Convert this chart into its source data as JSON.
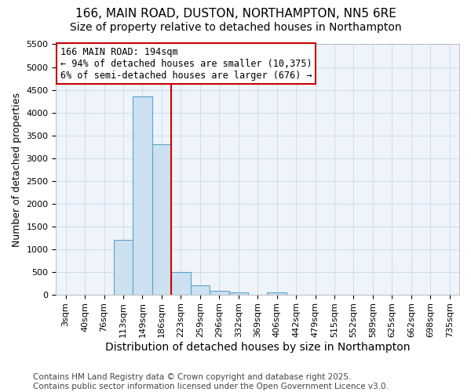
{
  "title": "166, MAIN ROAD, DUSTON, NORTHAMPTON, NN5 6RE",
  "subtitle": "Size of property relative to detached houses in Northampton",
  "xlabel": "Distribution of detached houses by size in Northampton",
  "ylabel": "Number of detached properties",
  "bins": [
    "3sqm",
    "40sqm",
    "76sqm",
    "113sqm",
    "149sqm",
    "186sqm",
    "223sqm",
    "259sqm",
    "296sqm",
    "332sqm",
    "369sqm",
    "406sqm",
    "442sqm",
    "479sqm",
    "515sqm",
    "552sqm",
    "589sqm",
    "625sqm",
    "662sqm",
    "698sqm",
    "735sqm"
  ],
  "values": [
    0,
    0,
    0,
    1200,
    4350,
    3300,
    500,
    200,
    75,
    50,
    0,
    50,
    0,
    0,
    0,
    0,
    0,
    0,
    0,
    0,
    0
  ],
  "bar_color": "#cde0f0",
  "bar_edge_color": "#5ba3d0",
  "vline_x_index": 5.5,
  "vline_color": "#cc0000",
  "annotation_line1": "166 MAIN ROAD: 194sqm",
  "annotation_line2": "← 94% of detached houses are smaller (10,375)",
  "annotation_line3": "6% of semi-detached houses are larger (676) →",
  "annotation_box_color": "#cc0000",
  "ylim": [
    0,
    5500
  ],
  "yticks": [
    0,
    500,
    1000,
    1500,
    2000,
    2500,
    3000,
    3500,
    4000,
    4500,
    5000,
    5500
  ],
  "grid_color": "#ccddee",
  "background_color": "#eef4f9",
  "footnote": "Contains HM Land Registry data © Crown copyright and database right 2025.\nContains public sector information licensed under the Open Government Licence v3.0.",
  "title_fontsize": 11,
  "subtitle_fontsize": 10,
  "xlabel_fontsize": 10,
  "ylabel_fontsize": 9,
  "tick_fontsize": 8,
  "annotation_fontsize": 8.5,
  "footnote_fontsize": 7.5
}
